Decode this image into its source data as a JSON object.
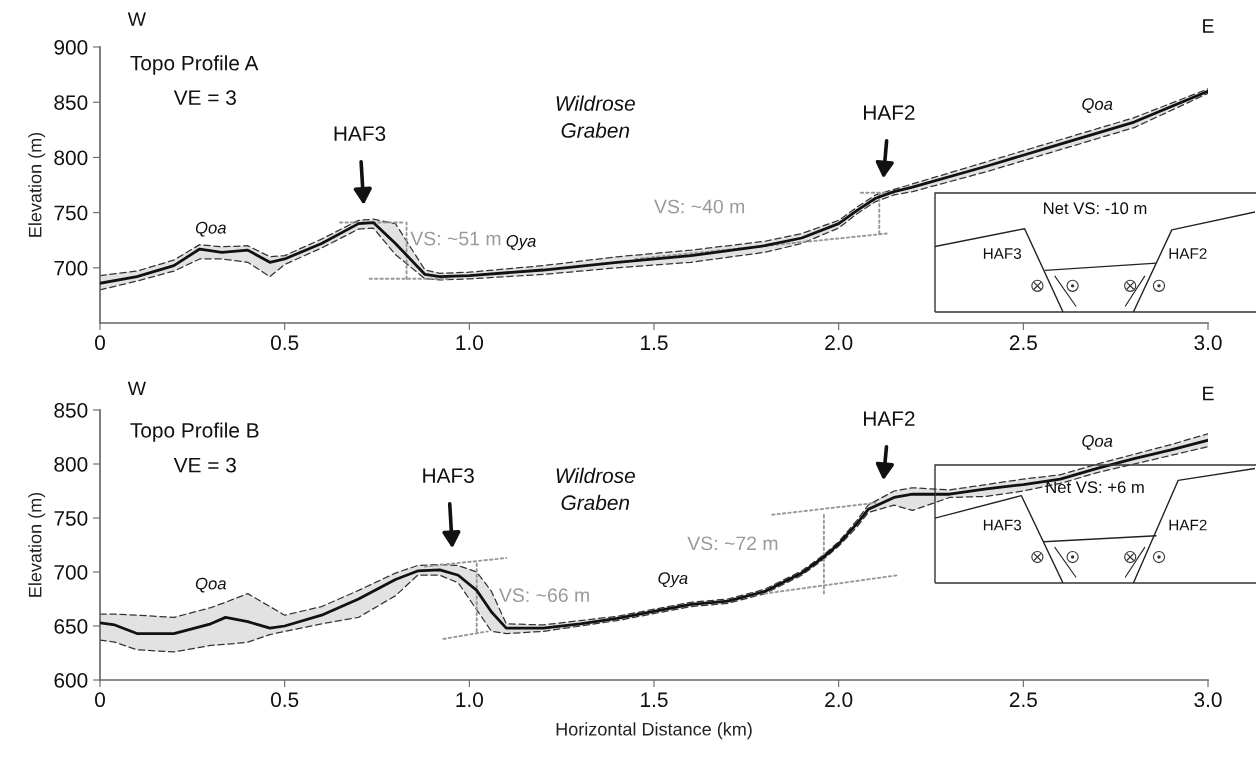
{
  "chart_data": [
    {
      "type": "line",
      "ylabel": "Elevation (m)",
      "xlim": [
        0,
        3
      ],
      "xticks": [
        0,
        0.5,
        {
          "value": 1,
          "label": "1.0"
        },
        1.5,
        {
          "value": 2,
          "label": "2.0"
        },
        2.5,
        {
          "value": 3,
          "label": "3.0"
        }
      ],
      "ylim": [
        650,
        900
      ],
      "yticks": [
        700,
        750,
        800,
        850,
        900
      ],
      "annotations": [
        "W",
        "E",
        "Topo Profile A",
        "VE = 3",
        "Wildrose\nGraben",
        "HAF3",
        "HAF2",
        "VS: ~51 m",
        "VS: ~40 m",
        "Qoa",
        "Qya",
        "Qoa",
        "Net VS: -10 m",
        "HAF3",
        "HAF2"
      ],
      "series": [
        {
          "color": "#111111",
          "x": [
            0,
            0.1,
            0.2,
            0.27,
            0.33,
            0.4,
            0.46,
            0.5,
            0.6,
            0.7,
            0.74,
            0.8,
            0.88,
            0.92,
            1.0,
            1.2,
            1.4,
            1.6,
            1.8,
            1.9,
            2.0,
            2.05,
            2.1,
            2.15,
            2.2,
            2.4,
            2.6,
            2.8,
            3.0
          ],
          "values": [
            686,
            692,
            702,
            717,
            714,
            716,
            705,
            708,
            722,
            740,
            741,
            722,
            694,
            692,
            693,
            698,
            705,
            711,
            720,
            727,
            740,
            752,
            763,
            769,
            773,
            792,
            812,
            832,
            860
          ],
          "lower": [
            680,
            688,
            697,
            708,
            708,
            705,
            692,
            703,
            718,
            735,
            736,
            712,
            690,
            689,
            690,
            694,
            700,
            705,
            714,
            722,
            736,
            749,
            760,
            766,
            769,
            787,
            807,
            827,
            858
          ],
          "upper": [
            693,
            697,
            707,
            721,
            719,
            720,
            710,
            711,
            726,
            743,
            744,
            740,
            698,
            695,
            696,
            702,
            710,
            716,
            724,
            731,
            743,
            755,
            766,
            771,
            776,
            796,
            816,
            836,
            862
          ]
        },
        {
          "color": "#333333",
          "line_style": "dashed",
          "x": [
            0,
            0.1,
            0.2,
            0.27,
            0.33,
            0.4,
            0.46,
            0.5,
            0.6,
            0.7,
            0.74,
            0.8,
            0.88,
            0.92,
            1.0,
            1.2,
            1.4,
            1.6,
            1.8,
            1.9,
            2.0,
            2.05,
            2.1,
            2.15,
            2.2,
            2.4,
            2.6,
            2.8,
            3.0
          ],
          "values": [
            680,
            688,
            697,
            708,
            708,
            705,
            692,
            703,
            718,
            735,
            736,
            712,
            690,
            689,
            690,
            694,
            700,
            705,
            714,
            722,
            736,
            749,
            760,
            766,
            769,
            787,
            807,
            827,
            858
          ]
        },
        {
          "color": "#333333",
          "line_style": "dashed",
          "x": [
            0,
            0.1,
            0.2,
            0.27,
            0.33,
            0.4,
            0.46,
            0.5,
            0.6,
            0.7,
            0.74,
            0.8,
            0.88,
            0.92,
            1.0,
            1.2,
            1.4,
            1.6,
            1.8,
            1.9,
            2.0,
            2.05,
            2.1,
            2.15,
            2.2,
            2.4,
            2.6,
            2.8,
            3.0
          ],
          "values": [
            693,
            697,
            707,
            721,
            719,
            720,
            710,
            711,
            726,
            743,
            744,
            740,
            698,
            695,
            696,
            702,
            710,
            716,
            724,
            731,
            743,
            755,
            766,
            771,
            776,
            796,
            816,
            836,
            862
          ]
        },
        {
          "color": "#999999",
          "line_style": "dotted",
          "x": [
            0.65,
            0.82
          ],
          "values": [
            741,
            741
          ]
        },
        {
          "color": "#999999",
          "line_style": "dotted",
          "x": [
            0.73,
            0.95
          ],
          "values": [
            690,
            690
          ]
        },
        {
          "color": "#999999",
          "line_style": "dotted",
          "x": [
            0.83,
            0.83
          ],
          "values": [
            690,
            741
          ]
        },
        {
          "color": "#999999",
          "line_style": "dotted",
          "x": [
            2.06,
            2.15
          ],
          "values": [
            768,
            768
          ]
        },
        {
          "color": "#999999",
          "line_style": "dotted",
          "x": [
            1.45,
            2.13
          ],
          "values": [
            708,
            731
          ]
        },
        {
          "color": "#999999",
          "line_style": "dotted",
          "x": [
            2.11,
            2.11
          ],
          "values": [
            731,
            768
          ]
        }
      ]
    },
    {
      "type": "line",
      "xlabel": "Horizontal Distance (km)",
      "ylabel": "Elevation (m)",
      "xlim": [
        0,
        3
      ],
      "xticks": [
        0,
        0.5,
        {
          "value": 1,
          "label": "1.0"
        },
        1.5,
        {
          "value": 2,
          "label": "2.0"
        },
        2.5,
        {
          "value": 3,
          "label": "3.0"
        }
      ],
      "ylim": [
        600,
        850
      ],
      "yticks": [
        600,
        650,
        700,
        750,
        800,
        850
      ],
      "annotations": [
        "W",
        "E",
        "Topo Profile B",
        "VE = 3",
        "Wildrose\nGraben",
        "HAF3",
        "HAF2",
        "VS: ~66 m",
        "VS: ~72 m",
        "Qoa",
        "Qya",
        "Qoa",
        "Net VS: +6 m",
        "HAF3",
        "HAF2"
      ],
      "series": [
        {
          "color": "#111111",
          "x": [
            0,
            0.04,
            0.1,
            0.2,
            0.3,
            0.34,
            0.4,
            0.46,
            0.5,
            0.6,
            0.7,
            0.8,
            0.86,
            0.92,
            0.97,
            1.02,
            1.06,
            1.1,
            1.2,
            1.3,
            1.4,
            1.6,
            1.7,
            1.8,
            1.9,
            1.96,
            2.0,
            2.05,
            2.08,
            2.15,
            2.2,
            2.3,
            2.4,
            2.5,
            2.6,
            2.7,
            2.8,
            2.9,
            3.0
          ],
          "values": [
            653,
            651,
            643,
            643,
            652,
            658,
            654,
            648,
            650,
            660,
            675,
            693,
            701,
            702,
            697,
            683,
            663,
            648,
            648,
            652,
            657,
            670,
            673,
            682,
            699,
            714,
            726,
            745,
            758,
            769,
            772,
            772,
            777,
            781,
            786,
            796,
            805,
            813,
            822
          ],
          "lower": [
            637,
            635,
            628,
            626,
            632,
            633,
            635,
            642,
            645,
            652,
            658,
            678,
            697,
            697,
            690,
            665,
            645,
            643,
            645,
            650,
            655,
            668,
            671,
            680,
            697,
            712,
            724,
            742,
            755,
            762,
            757,
            769,
            770,
            775,
            782,
            792,
            800,
            808,
            816
          ],
          "upper": [
            661,
            661,
            660,
            658,
            667,
            672,
            680,
            668,
            660,
            668,
            683,
            699,
            706,
            707,
            706,
            700,
            682,
            652,
            651,
            655,
            659,
            672,
            675,
            684,
            701,
            716,
            728,
            748,
            762,
            775,
            778,
            776,
            781,
            786,
            790,
            800,
            809,
            818,
            828
          ]
        },
        {
          "color": "#333333",
          "line_style": "dashed",
          "x": [
            0,
            0.04,
            0.1,
            0.2,
            0.3,
            0.34,
            0.4,
            0.46,
            0.5,
            0.6,
            0.7,
            0.8,
            0.86,
            0.92,
            0.97,
            1.02,
            1.06,
            1.1,
            1.2,
            1.3,
            1.4,
            1.6,
            1.7,
            1.8,
            1.9,
            1.96,
            2.0,
            2.05,
            2.08,
            2.15,
            2.2,
            2.3,
            2.4,
            2.5,
            2.6,
            2.7,
            2.8,
            2.9,
            3.0
          ],
          "values": [
            637,
            635,
            628,
            626,
            632,
            633,
            635,
            642,
            645,
            652,
            658,
            678,
            697,
            697,
            690,
            665,
            645,
            643,
            645,
            650,
            655,
            668,
            671,
            680,
            697,
            712,
            724,
            742,
            755,
            762,
            757,
            769,
            770,
            775,
            782,
            792,
            800,
            808,
            816
          ]
        },
        {
          "color": "#333333",
          "line_style": "dashed",
          "x": [
            0,
            0.04,
            0.1,
            0.2,
            0.3,
            0.34,
            0.4,
            0.46,
            0.5,
            0.6,
            0.7,
            0.8,
            0.86,
            0.92,
            0.97,
            1.02,
            1.06,
            1.1,
            1.2,
            1.3,
            1.4,
            1.6,
            1.7,
            1.8,
            1.9,
            1.96,
            2.0,
            2.05,
            2.08,
            2.15,
            2.2,
            2.3,
            2.4,
            2.5,
            2.6,
            2.7,
            2.8,
            2.9,
            3.0
          ],
          "values": [
            661,
            661,
            660,
            658,
            667,
            672,
            680,
            668,
            660,
            668,
            683,
            699,
            706,
            707,
            706,
            700,
            682,
            652,
            651,
            655,
            659,
            672,
            675,
            684,
            701,
            716,
            728,
            748,
            762,
            775,
            778,
            776,
            781,
            786,
            790,
            800,
            809,
            818,
            828
          ]
        },
        {
          "color": "#999999",
          "line_style": "dotted",
          "x": [
            0.88,
            1.1
          ],
          "values": [
            705,
            713
          ]
        },
        {
          "color": "#999999",
          "line_style": "dotted",
          "x": [
            0.93,
            1.05
          ],
          "values": [
            638,
            645
          ]
        },
        {
          "color": "#999999",
          "line_style": "dotted",
          "x": [
            1.02,
            1.02
          ],
          "values": [
            645,
            708
          ]
        },
        {
          "color": "#999999",
          "line_style": "dotted",
          "x": [
            1.82,
            2.1
          ],
          "values": [
            753,
            764
          ]
        },
        {
          "color": "#999999",
          "line_style": "dotted",
          "x": [
            1.8,
            2.16
          ],
          "values": [
            680,
            697
          ]
        },
        {
          "color": "#999999",
          "line_style": "dotted",
          "x": [
            1.96,
            1.96
          ],
          "values": [
            680,
            755
          ]
        }
      ]
    }
  ]
}
